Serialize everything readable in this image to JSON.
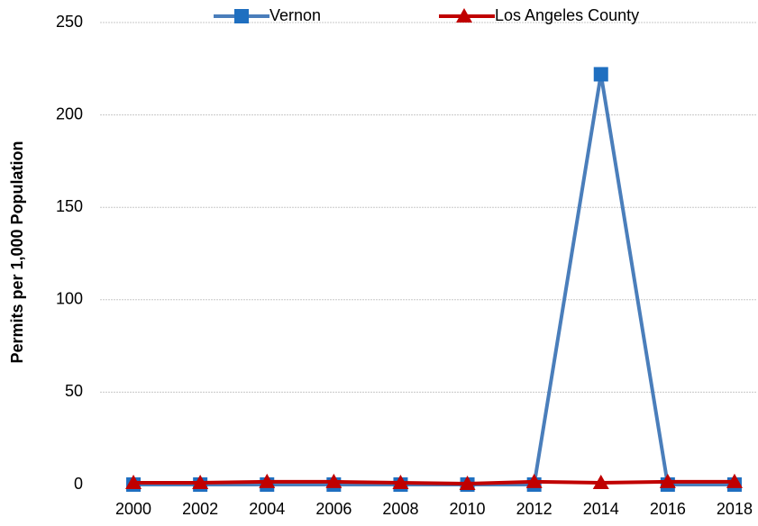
{
  "chart_data": {
    "type": "line",
    "y_axis_label": "Permits per 1,000 Population",
    "categories": [
      "2000",
      "2002",
      "2004",
      "2006",
      "2008",
      "2010",
      "2012",
      "2014",
      "2016",
      "2018"
    ],
    "series": [
      {
        "name": "Vernon",
        "color": "#4a7ebb",
        "marker_color": "#1f6fc0",
        "marker": "square",
        "values": [
          0,
          0,
          0,
          0,
          0,
          0,
          0,
          222,
          0,
          0
        ]
      },
      {
        "name": "Los Angeles County",
        "color": "#c00000",
        "marker_color": "#c00000",
        "marker": "triangle",
        "values": [
          1,
          1,
          1.5,
          1.5,
          1,
          0.5,
          1.5,
          1,
          1.5,
          1.5
        ]
      }
    ],
    "ylim": [
      0,
      250
    ],
    "yticks": [
      0,
      50,
      100,
      150,
      200,
      250
    ],
    "grid": true,
    "legend": "top"
  }
}
